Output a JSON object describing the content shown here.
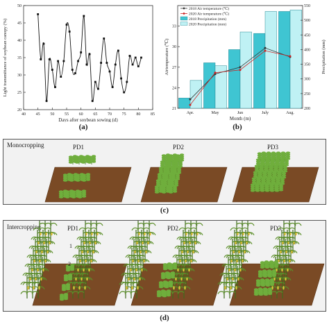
{
  "panel_labels": {
    "a": "(a)",
    "b": "(b)",
    "c": "(c)",
    "d": "(d)"
  },
  "chart_data": [
    {
      "type": "line",
      "xlabel": "Days after soybean sowing (d)",
      "ylabel": "Light transmittance of soybean canopy (%)",
      "xlim": [
        40,
        85
      ],
      "ylim": [
        20,
        50
      ],
      "xticks": [
        "40",
        "45",
        "50",
        "55",
        "60",
        "65",
        "70",
        "75",
        "80",
        "85"
      ],
      "yticks": [
        "20",
        "25",
        "30",
        "35",
        "40",
        "45",
        "50"
      ],
      "series": [
        {
          "x": [
            45,
            46,
            47,
            48,
            49,
            50,
            51,
            52,
            53,
            54,
            55,
            56,
            57,
            58,
            59,
            60,
            61,
            62,
            63,
            64,
            65,
            66,
            67,
            68,
            69,
            70,
            71,
            72,
            73,
            74,
            75,
            76,
            77,
            78,
            79,
            80,
            81
          ],
          "values": [
            47.5,
            34.5,
            39.0,
            22.5,
            34.5,
            31.5,
            26.5,
            34.0,
            29.5,
            34.0,
            44.5,
            42.5,
            31.5,
            30.5,
            34.0,
            36.5,
            47.0,
            33.0,
            36.0,
            22.5,
            28.0,
            26.0,
            33.5,
            40.5,
            33.5,
            31.0,
            26.5,
            33.0,
            37.0,
            29.0,
            25.0,
            28.0,
            35.5,
            33.0,
            35.0,
            32.5,
            35.0
          ]
        }
      ]
    },
    {
      "type": "bar",
      "xlabel": "Month (m)",
      "ylabel": "Airtemperature (℃)",
      "ylabel_right": "Precipitation (mm)",
      "categories": [
        "Apr.",
        "May",
        "Jun",
        "July",
        "Aug."
      ],
      "ylim": [
        21,
        36
      ],
      "ylim_right": [
        200,
        550
      ],
      "yticks": [
        "21",
        "24",
        "27",
        "30",
        "33"
      ],
      "yticks_right": [
        "200",
        "250",
        "300",
        "350",
        "400",
        "450",
        "500",
        "550"
      ],
      "series": [
        {
          "name": "2018 Precipitation (mm)",
          "kind": "bar",
          "axis": "right",
          "color": "#3fc5d2",
          "values": [
            235,
            355,
            400,
            455,
            530
          ]
        },
        {
          "name": "2020 Precipitation (mm)",
          "kind": "bar",
          "axis": "right",
          "color": "#bff1f4",
          "values": [
            295,
            345,
            460,
            530,
            535
          ]
        },
        {
          "name": "2018 Air temperature (℃)",
          "kind": "line",
          "axis": "left",
          "color": "#333333",
          "values": [
            22.3,
            26.0,
            27.0,
            29.8,
            28.5
          ]
        },
        {
          "name": "2020 Air temperature (℃)",
          "kind": "line",
          "axis": "left",
          "color": "#cc2222",
          "values": [
            21.5,
            26.2,
            26.6,
            29.4,
            28.6
          ]
        }
      ]
    }
  ],
  "mono": {
    "title": "Monocropping",
    "pd": [
      "PD1",
      "PD2",
      "PD3"
    ]
  },
  "inter": {
    "title": "Intercropping",
    "pd": [
      "PD1",
      "PD2",
      "PD3"
    ],
    "marks": [
      "1",
      "2"
    ]
  },
  "colors": {
    "soil": "#7a4a25",
    "soil_dark": "#5a3517",
    "soy": "#6fae3c",
    "soy_dark": "#3d7a1f",
    "maize": "#5c8f2a",
    "cob": "#e3c23a"
  }
}
